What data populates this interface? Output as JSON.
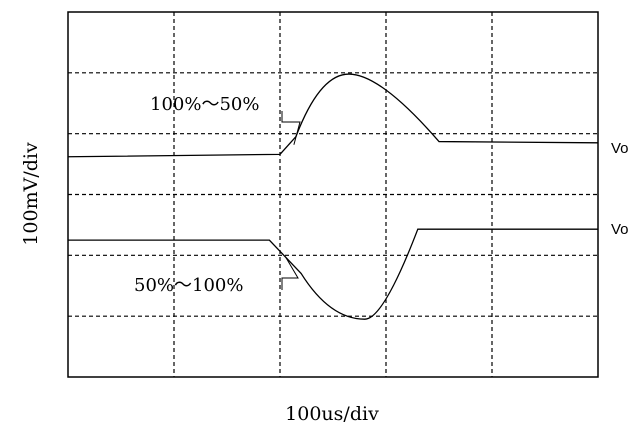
{
  "chart_data": {
    "type": "line",
    "title": "",
    "xlabel": "100us/div",
    "ylabel": "100mV/div",
    "xlim": [
      0,
      10
    ],
    "ylim": [
      0,
      6
    ],
    "grid": true,
    "grid_divisions": {
      "x": 5,
      "y": 6
    },
    "series": [
      {
        "name": "Vo",
        "annotation": "100%～50%",
        "x": [
          0,
          4.0,
          4.3,
          5.3,
          7.0,
          10
        ],
        "y": [
          3.62,
          3.66,
          3.95,
          4.98,
          3.87,
          3.85
        ]
      },
      {
        "name": "Vo",
        "annotation": "50%～100%",
        "x": [
          0,
          3.8,
          4.4,
          5.6,
          6.6,
          10
        ],
        "y": [
          2.25,
          2.25,
          1.7,
          0.95,
          2.43,
          2.43
        ]
      }
    ]
  }
}
